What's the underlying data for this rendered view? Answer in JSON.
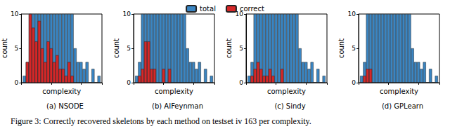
{
  "caption": "Figure 3: Correctly recovered skeletons by each method on testset iv 163 per complexity.",
  "chart_data": [
    {
      "type": "bar",
      "title": "(a) NSODE",
      "xlabel": "complexity",
      "ylabel": "count",
      "x": [
        1,
        2,
        3,
        4,
        5,
        6,
        7,
        8,
        9,
        10,
        11,
        12,
        13,
        14,
        15,
        16,
        17,
        18,
        19,
        20,
        21,
        22,
        23,
        24,
        25,
        26
      ],
      "series": [
        {
          "name": "total",
          "color": "#3a85c2",
          "values": [
            1,
            3,
            10,
            10,
            10,
            10,
            10,
            10,
            10,
            10,
            10,
            10,
            10,
            10,
            10,
            10,
            10,
            5,
            3,
            3,
            2,
            3,
            0,
            2,
            0,
            1
          ]
        },
        {
          "name": "correct",
          "color": "#d62728",
          "values": [
            0,
            3,
            10,
            8,
            6,
            9,
            5,
            3,
            6,
            5,
            3,
            4,
            2,
            2,
            1,
            3,
            1,
            0,
            0,
            0,
            0,
            0,
            0,
            0,
            0,
            0
          ]
        }
      ],
      "xlim": [
        0,
        27
      ],
      "xticks": [
        0,
        10,
        20
      ],
      "ylim": [
        0,
        10
      ],
      "yticks": [
        0,
        5,
        10
      ],
      "tick_labels": "y",
      "legend": "top"
    },
    {
      "type": "bar",
      "title": "(b) AIFeynman",
      "xlabel": "complexity",
      "ylabel": "count",
      "x": [
        1,
        2,
        3,
        4,
        5,
        6,
        7,
        8,
        9,
        10,
        11,
        12,
        13,
        14,
        15,
        16,
        17,
        18,
        19,
        20,
        21,
        22,
        23,
        24,
        25,
        26
      ],
      "series": [
        {
          "name": "total",
          "color": "#3a85c2",
          "values": [
            1,
            3,
            10,
            10,
            10,
            10,
            10,
            10,
            10,
            10,
            10,
            10,
            10,
            10,
            10,
            10,
            10,
            5,
            3,
            3,
            2,
            3,
            0,
            2,
            0,
            1
          ]
        },
        {
          "name": "correct",
          "color": "#d62728",
          "values": [
            0,
            1,
            2,
            6,
            6,
            2,
            2,
            0,
            0,
            2,
            0,
            2,
            0,
            0,
            0,
            0,
            0,
            0,
            0,
            0,
            0,
            0,
            0,
            0,
            0,
            0
          ]
        }
      ],
      "xlim": [
        0,
        27
      ],
      "xticks": [
        0,
        10,
        20
      ],
      "ylim": [
        0,
        10
      ],
      "yticks": [
        0,
        5,
        10
      ],
      "tick_labels": "y"
    },
    {
      "type": "bar",
      "title": "(c) Sindy",
      "xlabel": "complexity",
      "ylabel": "count",
      "x": [
        1,
        2,
        3,
        4,
        5,
        6,
        7,
        8,
        9,
        10,
        11,
        12,
        13,
        14,
        15,
        16,
        17,
        18,
        19,
        20,
        21,
        22,
        23,
        24,
        25,
        26
      ],
      "series": [
        {
          "name": "total",
          "color": "#3a85c2",
          "values": [
            1,
            3,
            10,
            10,
            10,
            10,
            10,
            10,
            10,
            10,
            10,
            10,
            10,
            10,
            10,
            10,
            10,
            5,
            3,
            3,
            2,
            3,
            0,
            2,
            0,
            1
          ]
        },
        {
          "name": "correct",
          "color": "#d62728",
          "values": [
            0,
            1,
            2,
            3,
            2,
            1,
            1,
            2,
            1,
            0,
            0,
            2,
            0,
            0,
            0,
            0,
            0,
            0,
            0,
            0,
            0,
            0,
            0,
            0,
            0,
            0
          ]
        }
      ],
      "xlim": [
        0,
        27
      ],
      "xticks": [
        0,
        10,
        20
      ],
      "ylim": [
        0,
        10
      ],
      "yticks": [
        0,
        5,
        10
      ],
      "tick_labels": "y"
    },
    {
      "type": "bar",
      "title": "(d) GPLearn",
      "xlabel": "complexity",
      "ylabel": "count",
      "x": [
        1,
        2,
        3,
        4,
        5,
        6,
        7,
        8,
        9,
        10,
        11,
        12,
        13,
        14,
        15,
        16,
        17,
        18,
        19,
        20,
        21,
        22,
        23,
        24,
        25,
        26
      ],
      "series": [
        {
          "name": "total",
          "color": "#3a85c2",
          "values": [
            1,
            3,
            10,
            10,
            10,
            10,
            10,
            10,
            10,
            10,
            10,
            10,
            10,
            10,
            10,
            10,
            10,
            5,
            3,
            3,
            2,
            3,
            0,
            2,
            0,
            1
          ]
        },
        {
          "name": "correct",
          "color": "#d62728",
          "values": [
            0,
            1,
            2,
            2,
            0,
            0,
            0,
            0,
            0,
            0,
            0,
            0,
            0,
            0,
            0,
            0,
            0,
            0,
            0,
            0,
            0,
            0,
            0,
            0,
            0,
            0
          ]
        }
      ],
      "xlim": [
        0,
        27
      ],
      "xticks": [
        0,
        10,
        20
      ],
      "ylim": [
        0,
        10
      ],
      "yticks": [
        0,
        5,
        10
      ],
      "tick_labels": "y"
    }
  ]
}
